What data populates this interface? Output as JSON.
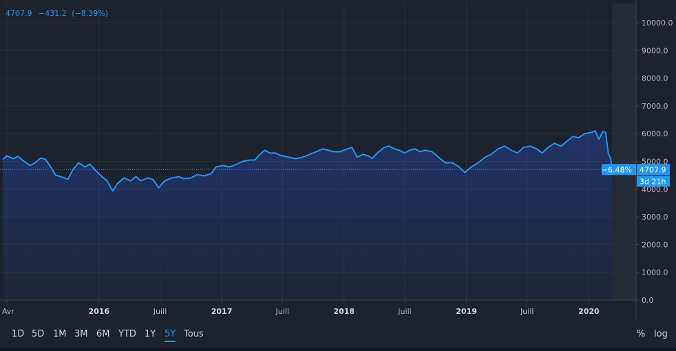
{
  "header": {
    "price": "4707.9",
    "change": "−431.2",
    "change_pct": "(−8.39%)"
  },
  "price_tags": {
    "pct": "−6.48%",
    "price": "4707.9",
    "countdown": "3d 21h"
  },
  "range_buttons": [
    {
      "label": "1D",
      "active": false
    },
    {
      "label": "5D",
      "active": false
    },
    {
      "label": "1M",
      "active": false
    },
    {
      "label": "3M",
      "active": false
    },
    {
      "label": "6M",
      "active": false
    },
    {
      "label": "YTD",
      "active": false
    },
    {
      "label": "1Y",
      "active": false
    },
    {
      "label": "5Y",
      "active": true
    },
    {
      "label": "Tous",
      "active": false
    }
  ],
  "controls": {
    "percent": "%",
    "log": "log"
  },
  "colors": {
    "line": "#2196f3",
    "grid": "#2a2e39",
    "text": "#b2b5be",
    "background": "#1e222d",
    "tag": "#2196f3"
  },
  "chart_data": {
    "type": "area",
    "x_ticks": [
      {
        "label": "Avr",
        "date": "2015-04-01"
      },
      {
        "label": "2016",
        "date": "2016-01-01"
      },
      {
        "label": "Juill",
        "date": "2016-07-01"
      },
      {
        "label": "2017",
        "date": "2017-01-01"
      },
      {
        "label": "Juill",
        "date": "2017-07-01"
      },
      {
        "label": "2018",
        "date": "2018-01-01"
      },
      {
        "label": "Juill",
        "date": "2018-07-01"
      },
      {
        "label": "2019",
        "date": "2019-01-01"
      },
      {
        "label": "Juill",
        "date": "2019-07-01"
      },
      {
        "label": "2020",
        "date": "2020-01-01"
      }
    ],
    "y_ticks": [
      "0.0",
      "1000.0",
      "2000.0",
      "3000.0",
      "4000.0",
      "5000.0",
      "6000.0",
      "7000.0",
      "8000.0",
      "9000.0",
      "10000.0"
    ],
    "ylim": [
      0,
      10000
    ],
    "last_value": 4707.9,
    "series": [
      {
        "points": [
          [
            "2015-03-20",
            5070
          ],
          [
            "2015-04-01",
            5200
          ],
          [
            "2015-04-20",
            5100
          ],
          [
            "2015-05-05",
            5180
          ],
          [
            "2015-05-20",
            5020
          ],
          [
            "2015-06-10",
            4850
          ],
          [
            "2015-06-25",
            4950
          ],
          [
            "2015-07-10",
            5120
          ],
          [
            "2015-07-25",
            5080
          ],
          [
            "2015-08-10",
            4800
          ],
          [
            "2015-08-25",
            4500
          ],
          [
            "2015-09-10",
            4450
          ],
          [
            "2015-09-30",
            4350
          ],
          [
            "2015-10-15",
            4700
          ],
          [
            "2015-11-01",
            4950
          ],
          [
            "2015-11-20",
            4800
          ],
          [
            "2015-12-05",
            4900
          ],
          [
            "2015-12-20",
            4700
          ],
          [
            "2016-01-10",
            4450
          ],
          [
            "2016-01-25",
            4300
          ],
          [
            "2016-02-11",
            3930
          ],
          [
            "2016-02-25",
            4200
          ],
          [
            "2016-03-15",
            4400
          ],
          [
            "2016-04-05",
            4300
          ],
          [
            "2016-04-20",
            4450
          ],
          [
            "2016-05-05",
            4300
          ],
          [
            "2016-05-25",
            4400
          ],
          [
            "2016-06-10",
            4350
          ],
          [
            "2016-06-27",
            4050
          ],
          [
            "2016-07-15",
            4300
          ],
          [
            "2016-08-05",
            4400
          ],
          [
            "2016-08-25",
            4450
          ],
          [
            "2016-09-10",
            4380
          ],
          [
            "2016-09-30",
            4400
          ],
          [
            "2016-10-20",
            4520
          ],
          [
            "2016-11-10",
            4480
          ],
          [
            "2016-11-30",
            4550
          ],
          [
            "2016-12-15",
            4800
          ],
          [
            "2017-01-05",
            4850
          ],
          [
            "2017-01-25",
            4800
          ],
          [
            "2017-02-15",
            4900
          ],
          [
            "2017-03-05",
            5000
          ],
          [
            "2017-03-25",
            5050
          ],
          [
            "2017-04-10",
            5050
          ],
          [
            "2017-04-24",
            5250
          ],
          [
            "2017-05-10",
            5400
          ],
          [
            "2017-05-25",
            5300
          ],
          [
            "2017-06-10",
            5300
          ],
          [
            "2017-06-30",
            5200
          ],
          [
            "2017-07-20",
            5150
          ],
          [
            "2017-08-10",
            5100
          ],
          [
            "2017-08-30",
            5150
          ],
          [
            "2017-09-20",
            5250
          ],
          [
            "2017-10-10",
            5350
          ],
          [
            "2017-10-30",
            5450
          ],
          [
            "2017-11-15",
            5400
          ],
          [
            "2017-11-30",
            5350
          ],
          [
            "2017-12-20",
            5350
          ],
          [
            "2018-01-10",
            5450
          ],
          [
            "2018-01-25",
            5500
          ],
          [
            "2018-02-09",
            5150
          ],
          [
            "2018-02-25",
            5250
          ],
          [
            "2018-03-15",
            5200
          ],
          [
            "2018-03-25",
            5100
          ],
          [
            "2018-04-10",
            5300
          ],
          [
            "2018-04-30",
            5500
          ],
          [
            "2018-05-15",
            5550
          ],
          [
            "2018-06-01",
            5450
          ],
          [
            "2018-06-15",
            5400
          ],
          [
            "2018-06-30",
            5300
          ],
          [
            "2018-07-15",
            5400
          ],
          [
            "2018-08-01",
            5450
          ],
          [
            "2018-08-15",
            5350
          ],
          [
            "2018-08-31",
            5400
          ],
          [
            "2018-09-20",
            5350
          ],
          [
            "2018-10-10",
            5150
          ],
          [
            "2018-10-30",
            4950
          ],
          [
            "2018-11-20",
            4950
          ],
          [
            "2018-12-10",
            4800
          ],
          [
            "2018-12-27",
            4600
          ],
          [
            "2019-01-15",
            4800
          ],
          [
            "2019-02-05",
            4950
          ],
          [
            "2019-02-25",
            5150
          ],
          [
            "2019-03-15",
            5250
          ],
          [
            "2019-04-05",
            5450
          ],
          [
            "2019-04-25",
            5550
          ],
          [
            "2019-05-15",
            5400
          ],
          [
            "2019-06-01",
            5300
          ],
          [
            "2019-06-20",
            5500
          ],
          [
            "2019-07-10",
            5550
          ],
          [
            "2019-07-30",
            5450
          ],
          [
            "2019-08-15",
            5300
          ],
          [
            "2019-09-01",
            5500
          ],
          [
            "2019-09-20",
            5650
          ],
          [
            "2019-10-10",
            5550
          ],
          [
            "2019-10-30",
            5750
          ],
          [
            "2019-11-15",
            5900
          ],
          [
            "2019-12-01",
            5850
          ],
          [
            "2019-12-20",
            6000
          ],
          [
            "2020-01-10",
            6050
          ],
          [
            "2020-01-20",
            6100
          ],
          [
            "2020-01-31",
            5800
          ],
          [
            "2020-02-12",
            6080
          ],
          [
            "2020-02-20",
            6050
          ],
          [
            "2020-02-28",
            5300
          ],
          [
            "2020-03-06",
            5100
          ],
          [
            "2020-03-10",
            4707.9
          ]
        ]
      }
    ]
  }
}
